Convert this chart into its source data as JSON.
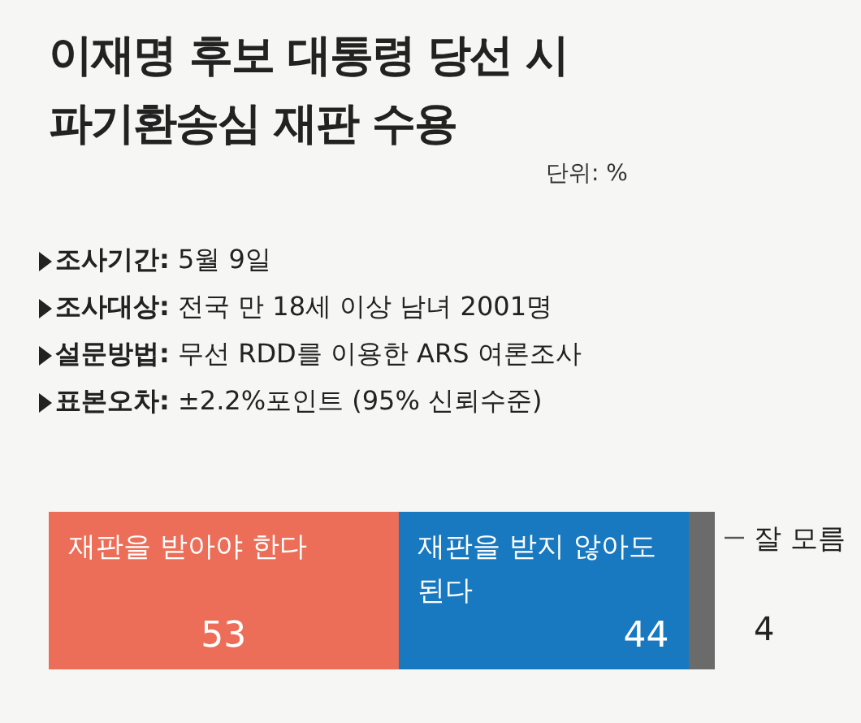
{
  "chart_data": {
    "type": "bar",
    "title": "이재명 후보 대통령 당선 시\n파기환송심 재판 수용",
    "subtitle": "단위: %",
    "annotations": [
      "조사기간: 5월 9일",
      "조사대상: 전국 만 18세 이상 남녀 2001명",
      "설문방법: 무선 RDD를 이용한 ARS 여론조사",
      "표본오차: ±2.2%포인트 (95% 신뢰수준)"
    ],
    "categories": [
      null
    ],
    "orientation": "horizontal",
    "stacked": true,
    "data_labels": true,
    "tick_labels": false,
    "legend": false,
    "series": [
      {
        "name": "재판을 받아야 한다",
        "color": "#ec6e58",
        "values": [
          53
        ]
      },
      {
        "name": "재판을 받지 않아도 된다",
        "color": "#1878c0",
        "values": [
          44
        ]
      },
      {
        "name": "잘 모름",
        "color": "#6b6b6b",
        "values": [
          4
        ]
      }
    ]
  }
}
